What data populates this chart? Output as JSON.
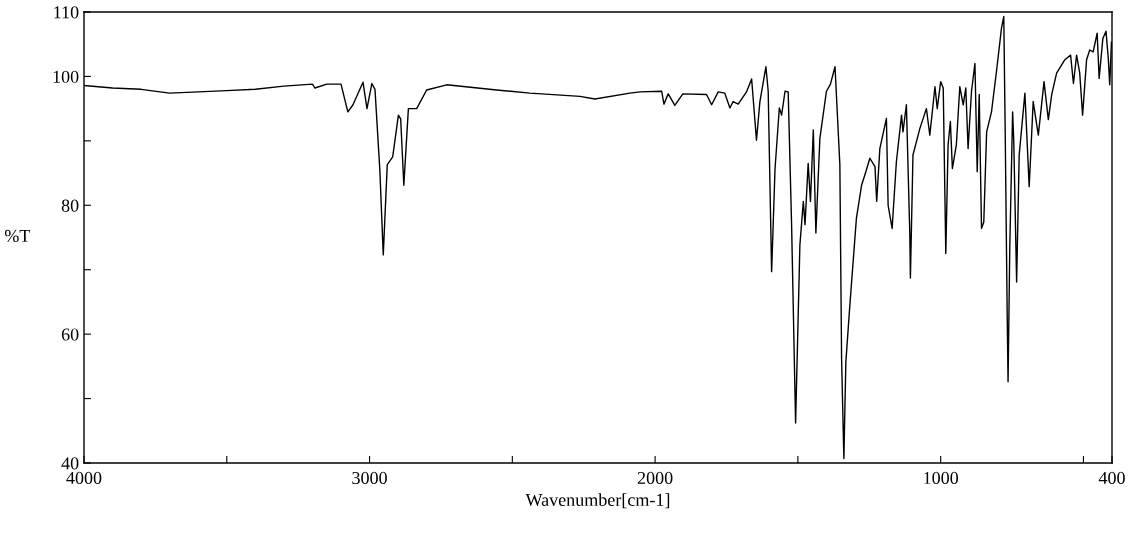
{
  "chart_data": {
    "type": "line",
    "xlabel": "Wavenumber[cm-1]",
    "ylabel": "%T",
    "xlim": [
      4000,
      400
    ],
    "ylim": [
      40,
      110
    ],
    "xticks": [
      4000,
      {
        "value": 3500,
        "label": null
      },
      3000,
      {
        "value": 2500,
        "label": null
      },
      2000,
      {
        "value": 1500,
        "label": null
      },
      1000,
      {
        "value": 500,
        "label": null
      },
      400
    ],
    "yticks": [
      40,
      {
        "value": 50,
        "label": null
      },
      60,
      {
        "value": 70,
        "label": null
      },
      80,
      {
        "value": 90,
        "label": null
      },
      100,
      110
    ],
    "grid": false,
    "legend": false,
    "marker": "none",
    "line_style": "solid",
    "series": [
      {
        "color": "#000000",
        "x": [
          4000,
          3900,
          3800,
          3700,
          3600,
          3500,
          3400,
          3300,
          3200,
          3191,
          3150,
          3100,
          3076,
          3058,
          3023,
          3009,
          2992,
          2981,
          2964,
          2952,
          2938,
          2919,
          2899,
          2891,
          2880,
          2864,
          2835,
          2800,
          2730,
          2555,
          2438,
          2263,
          2211,
          2088,
          2053,
          1977,
          1969,
          1954,
          1931,
          1903,
          1820,
          1802,
          1779,
          1756,
          1738,
          1727,
          1709,
          1680,
          1662,
          1645,
          1633,
          1612,
          1604,
          1592,
          1580,
          1565,
          1557,
          1545,
          1534,
          1522,
          1508,
          1493,
          1481,
          1475,
          1464,
          1456,
          1446,
          1437,
          1423,
          1400,
          1386,
          1370,
          1353,
          1347,
          1339,
          1332,
          1318,
          1295,
          1277,
          1262,
          1248,
          1230,
          1224,
          1213,
          1190,
          1184,
          1170,
          1155,
          1137,
          1132,
          1120,
          1108,
          1106,
          1097,
          1073,
          1050,
          1038,
          1020,
          1012,
          1000,
          991,
          982,
          974,
          966,
          959,
          945,
          933,
          921,
          912,
          904,
          892,
          880,
          872,
          865,
          857,
          849,
          839,
          822,
          804,
          787,
          779,
          774,
          767,
          764,
          758,
          748,
          744,
          734,
          725,
          705,
          690,
          676,
          658,
          638,
          623,
          611,
          594,
          565,
          545,
          535,
          524,
          513,
          503,
          489,
          478,
          466,
          452,
          445,
          432,
          421,
          413,
          408,
          402
        ],
        "values": [
          98.6,
          98.2,
          98.0,
          97.4,
          97.6,
          97.8,
          98.0,
          98.5,
          98.8,
          98.2,
          98.8,
          98.8,
          94.5,
          95.6,
          99.1,
          95.0,
          98.9,
          98.0,
          85.5,
          72.3,
          86.3,
          87.5,
          94.0,
          93.4,
          83.1,
          95.0,
          95.0,
          97.9,
          98.7,
          97.9,
          97.4,
          96.9,
          96.5,
          97.4,
          97.6,
          97.7,
          95.7,
          97.3,
          95.5,
          97.3,
          97.2,
          95.6,
          97.6,
          97.4,
          95.1,
          96.1,
          95.7,
          97.6,
          99.6,
          90.1,
          96.1,
          101.5,
          97.7,
          69.7,
          85.7,
          95.1,
          94.0,
          97.7,
          97.6,
          76.9,
          46.2,
          73.8,
          80.6,
          77.0,
          86.5,
          80.6,
          91.7,
          75.7,
          90.4,
          97.7,
          98.8,
          101.5,
          86.3,
          56.3,
          40.7,
          55.7,
          64.5,
          78.0,
          83.1,
          85.2,
          87.3,
          86.0,
          80.6,
          88.8,
          93.5,
          80.0,
          76.4,
          86.8,
          94.0,
          91.4,
          95.6,
          75.4,
          68.7,
          87.8,
          91.9,
          95.0,
          90.9,
          98.4,
          95.0,
          99.2,
          98.2,
          72.5,
          89.4,
          93.0,
          85.7,
          89.4,
          98.4,
          95.6,
          98.2,
          88.8,
          97.7,
          102.0,
          85.2,
          97.2,
          76.4,
          77.4,
          91.4,
          94.5,
          101.0,
          107.5,
          109.3,
          91.4,
          63.0,
          52.6,
          73.3,
          94.5,
          89.9,
          68.1,
          87.8,
          97.4,
          82.9,
          96.1,
          90.9,
          99.2,
          93.3,
          97.2,
          100.5,
          102.6,
          103.3,
          98.9,
          103.3,
          100.5,
          94.0,
          102.6,
          104.1,
          103.8,
          106.7,
          99.7,
          105.9,
          107.0,
          102.8,
          98.7,
          105.3
        ]
      }
    ]
  }
}
